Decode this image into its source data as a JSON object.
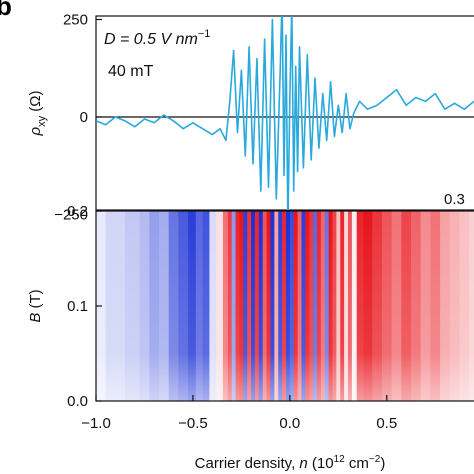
{
  "panel_label": "b",
  "chart_data": [
    {
      "type": "line",
      "annotations": {
        "d_field": "D = 0.5 V nm",
        "d_exponent": "−1",
        "field": "40 mT"
      },
      "ylabel": {
        "main": "ρ",
        "sub": "xy",
        "unit": " (Ω)"
      },
      "yticks": [
        "250",
        "0",
        "−250"
      ],
      "ytick_values": [
        250,
        0,
        -250
      ],
      "ylim": [
        -380,
        420
      ],
      "xlim": [
        -1.0,
        0.95
      ],
      "series": [
        {
          "color": "#29a9dc",
          "x": [
            -1.0,
            -0.95,
            -0.9,
            -0.85,
            -0.8,
            -0.75,
            -0.7,
            -0.65,
            -0.6,
            -0.55,
            -0.5,
            -0.45,
            -0.4,
            -0.36,
            -0.33,
            -0.31,
            -0.29,
            -0.27,
            -0.25,
            -0.23,
            -0.21,
            -0.19,
            -0.17,
            -0.15,
            -0.13,
            -0.11,
            -0.09,
            -0.07,
            -0.05,
            -0.04,
            -0.03,
            -0.02,
            -0.01,
            0.0,
            0.01,
            0.02,
            0.03,
            0.04,
            0.05,
            0.07,
            0.09,
            0.11,
            0.13,
            0.15,
            0.17,
            0.19,
            0.21,
            0.23,
            0.25,
            0.27,
            0.29,
            0.31,
            0.33,
            0.36,
            0.4,
            0.45,
            0.5,
            0.55,
            0.6,
            0.65,
            0.7,
            0.75,
            0.8,
            0.85,
            0.9,
            0.95
          ],
          "y": [
            -10,
            -20,
            0,
            -10,
            -25,
            -5,
            -15,
            5,
            -10,
            -30,
            -15,
            -30,
            -45,
            -30,
            -60,
            40,
            170,
            -40,
            120,
            -100,
            180,
            -120,
            150,
            -190,
            200,
            -180,
            250,
            -210,
            120,
            310,
            -150,
            210,
            -280,
            40,
            290,
            -190,
            130,
            -140,
            180,
            -130,
            160,
            -110,
            100,
            -80,
            60,
            -60,
            90,
            -50,
            30,
            -40,
            60,
            -30,
            10,
            40,
            20,
            30,
            50,
            70,
            30,
            50,
            40,
            60,
            20,
            35,
            20,
            40
          ]
        }
      ]
    },
    {
      "type": "heatmap",
      "colorbar_label": "0.3",
      "xlabel": {
        "prefix": "Carrier density, ",
        "italic": "n",
        "mid": " (10",
        "exp1": "12",
        "unit": " cm",
        "exp2": "−2",
        "close": ")"
      },
      "ylabel": {
        "italic": "B",
        "unit": " (T)"
      },
      "xticks": [
        "−1.0",
        "−0.5",
        "0.0",
        "0.5"
      ],
      "xtick_values": [
        -1.0,
        -0.5,
        0.0,
        0.5
      ],
      "yticks": [
        "0.2",
        "0.1",
        "0.0"
      ],
      "ytick_values": [
        0.2,
        0.1,
        0.0
      ],
      "xlim": [
        -1.0,
        0.95
      ],
      "ylim": [
        0.0,
        0.2
      ],
      "colorscale": {
        "neg": "#1a2fd6",
        "zero": "#ffffff",
        "pos": "#e8141c",
        "vmin": -0.3,
        "vmax": 0.3
      },
      "x": [
        -1.0,
        -0.9,
        -0.8,
        -0.75,
        -0.7,
        -0.65,
        -0.6,
        -0.55,
        -0.5,
        -0.47,
        -0.43,
        -0.4,
        -0.36,
        -0.33,
        -0.31,
        -0.29,
        -0.27,
        -0.25,
        -0.23,
        -0.21,
        -0.19,
        -0.17,
        -0.15,
        -0.13,
        -0.11,
        -0.09,
        -0.07,
        -0.05,
        -0.03,
        -0.01,
        0.01,
        0.03,
        0.05,
        0.07,
        0.09,
        0.11,
        0.13,
        0.15,
        0.17,
        0.19,
        0.21,
        0.23,
        0.25,
        0.27,
        0.29,
        0.31,
        0.33,
        0.36,
        0.4,
        0.45,
        0.5,
        0.55,
        0.6,
        0.65,
        0.7,
        0.75,
        0.8,
        0.85,
        0.9,
        0.95
      ],
      "values": [
        -0.03,
        -0.06,
        -0.08,
        -0.1,
        -0.14,
        -0.12,
        -0.2,
        -0.24,
        -0.28,
        -0.22,
        -0.25,
        -0.05,
        0.04,
        0.18,
        0.25,
        -0.15,
        0.28,
        0.3,
        -0.28,
        0.26,
        -0.3,
        0.28,
        -0.3,
        0.22,
        0.3,
        -0.3,
        0.12,
        -0.28,
        0.28,
        -0.3,
        -0.26,
        0.3,
        0.2,
        -0.28,
        0.3,
        0.26,
        -0.22,
        0.28,
        0.2,
        -0.2,
        0.3,
        0.24,
        0.08,
        0.28,
        0.05,
        0.22,
        0.02,
        0.28,
        0.3,
        0.26,
        0.22,
        0.18,
        0.24,
        0.2,
        0.15,
        0.18,
        0.12,
        0.1,
        0.08,
        0.06
      ]
    }
  ]
}
